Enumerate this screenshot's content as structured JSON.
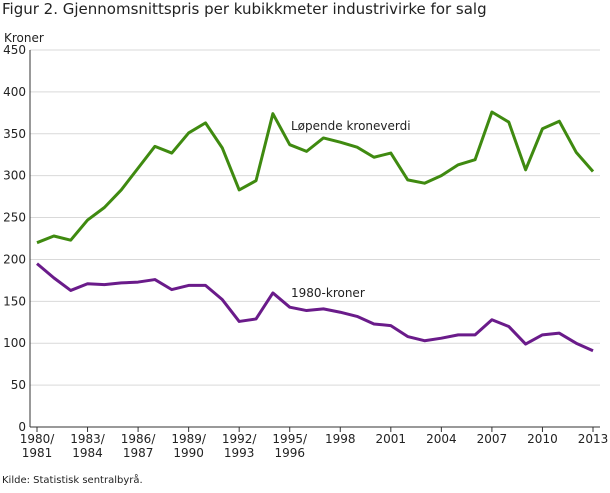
{
  "chart_data": {
    "type": "line",
    "title": "Figur 2. Gjennomsnittspris per kubikkmeter industrivirke for salg",
    "y_label": "Kroner",
    "source": "Kilde: Statistisk sentralbyrå.",
    "categories": [
      "1980/1981",
      null,
      null,
      "1983/1984",
      null,
      null,
      "1986/1987",
      null,
      null,
      "1989/1990",
      null,
      null,
      "1992/1993",
      null,
      null,
      "1995/1996",
      null,
      null,
      "1998",
      null,
      null,
      "2001",
      null,
      null,
      "2004",
      null,
      null,
      "2007",
      null,
      null,
      "2010",
      null,
      null,
      "2013"
    ],
    "series": [
      {
        "name": "Løpende kroneverdi",
        "color": "#3f8a10",
        "values": [
          220,
          228,
          223,
          247,
          262,
          283,
          309,
          335,
          327,
          351,
          363,
          333,
          283,
          294,
          374,
          337,
          329,
          345,
          340,
          334,
          322,
          327,
          295,
          291,
          300,
          313,
          319,
          376,
          364,
          307,
          356,
          365,
          328,
          305
        ]
      },
      {
        "name": "1980-kroner",
        "color": "#6a1b8a",
        "values": [
          195,
          178,
          163,
          171,
          170,
          172,
          173,
          176,
          164,
          169,
          169,
          152,
          126,
          129,
          160,
          143,
          139,
          141,
          137,
          132,
          123,
          121,
          108,
          103,
          106,
          110,
          110,
          128,
          120,
          99,
          110,
          112,
          100,
          91
        ]
      }
    ],
    "ylim": [
      0,
      450
    ],
    "yticks": [
      0,
      50,
      100,
      150,
      200,
      250,
      300,
      350,
      400,
      450
    ],
    "grid": true
  }
}
